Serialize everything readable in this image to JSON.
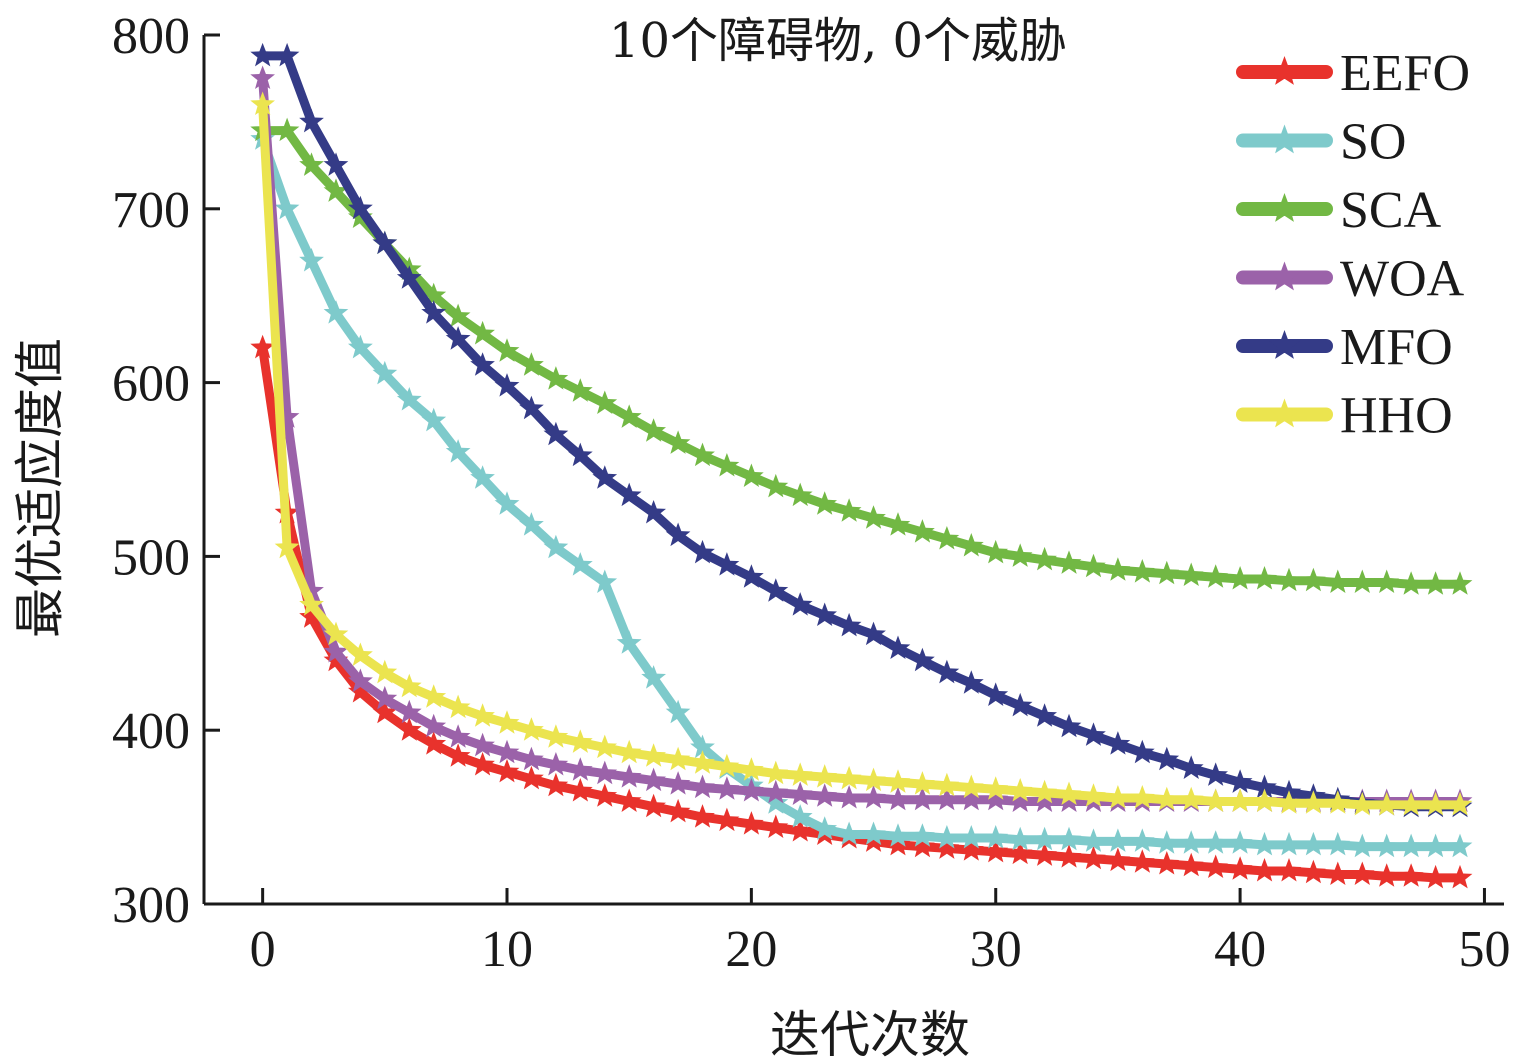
{
  "chart_data": {
    "type": "line",
    "title": "10个障碍物, 0个威胁",
    "xlabel": "迭代次数",
    "ylabel": "最优适应度值",
    "xlim": [
      -2.4,
      50.8
    ],
    "ylim": [
      300,
      800
    ],
    "xticks": [
      0,
      10,
      20,
      30,
      40,
      50
    ],
    "yticks": [
      300,
      400,
      500,
      600,
      700,
      800
    ],
    "grid": false,
    "legend_position": "top-right",
    "x": [
      0,
      1,
      2,
      3,
      4,
      5,
      6,
      7,
      8,
      9,
      10,
      11,
      12,
      13,
      14,
      15,
      16,
      17,
      18,
      19,
      20,
      21,
      22,
      23,
      24,
      25,
      26,
      27,
      28,
      29,
      30,
      31,
      32,
      33,
      34,
      35,
      36,
      37,
      38,
      39,
      40,
      41,
      42,
      43,
      44,
      45,
      46,
      47,
      48,
      49
    ],
    "series": [
      {
        "name": "EEFO",
        "color": "#e8322c",
        "values": [
          620,
          525,
          465,
          440,
          422,
          410,
          400,
          392,
          385,
          380,
          376,
          372,
          368,
          365,
          362,
          359,
          356,
          353,
          350,
          348,
          346,
          344,
          342,
          340,
          338,
          336,
          334,
          333,
          332,
          331,
          330,
          329,
          328,
          327,
          326,
          325,
          324,
          323,
          322,
          321,
          320,
          319,
          319,
          318,
          317,
          317,
          316,
          316,
          315,
          315
        ]
      },
      {
        "name": "SO",
        "color": "#7ecacb",
        "values": [
          740,
          700,
          670,
          640,
          620,
          605,
          590,
          578,
          560,
          545,
          530,
          518,
          505,
          495,
          485,
          450,
          430,
          410,
          390,
          378,
          368,
          358,
          350,
          343,
          340,
          340,
          339,
          339,
          338,
          338,
          338,
          337,
          337,
          337,
          336,
          336,
          336,
          335,
          335,
          335,
          335,
          334,
          334,
          334,
          334,
          333,
          333,
          333,
          333,
          333
        ]
      },
      {
        "name": "SCA",
        "color": "#72b844",
        "values": [
          745,
          745,
          725,
          710,
          695,
          680,
          665,
          650,
          638,
          628,
          618,
          610,
          602,
          595,
          588,
          580,
          572,
          565,
          558,
          552,
          546,
          540,
          535,
          530,
          526,
          522,
          518,
          514,
          510,
          506,
          502,
          500,
          498,
          496,
          494,
          492,
          491,
          490,
          489,
          488,
          487,
          487,
          486,
          486,
          485,
          485,
          485,
          484,
          484,
          484
        ]
      },
      {
        "name": "WOA",
        "color": "#9b62a9",
        "values": [
          775,
          580,
          480,
          445,
          428,
          418,
          410,
          402,
          396,
          391,
          387,
          383,
          380,
          377,
          375,
          373,
          371,
          369,
          367,
          366,
          365,
          364,
          363,
          362,
          361,
          361,
          360,
          360,
          360,
          360,
          360,
          359,
          359,
          359,
          359,
          359,
          359,
          359,
          359,
          359,
          359,
          359,
          359,
          359,
          359,
          359,
          359,
          359,
          359,
          359
        ]
      },
      {
        "name": "MFO",
        "color": "#343b87",
        "values": [
          788,
          788,
          750,
          725,
          700,
          680,
          660,
          640,
          625,
          610,
          598,
          585,
          570,
          558,
          545,
          535,
          525,
          512,
          502,
          495,
          488,
          480,
          472,
          466,
          460,
          455,
          447,
          440,
          433,
          427,
          420,
          414,
          408,
          402,
          397,
          392,
          387,
          383,
          378,
          374,
          370,
          367,
          364,
          362,
          360,
          358,
          357,
          356,
          356,
          356
        ]
      },
      {
        "name": "HHO",
        "color": "#ebe44f",
        "values": [
          760,
          505,
          472,
          455,
          443,
          433,
          425,
          419,
          413,
          408,
          404,
          400,
          396,
          393,
          390,
          387,
          385,
          383,
          381,
          379,
          377,
          375,
          374,
          373,
          372,
          371,
          370,
          369,
          368,
          367,
          366,
          365,
          364,
          363,
          362,
          361,
          361,
          360,
          360,
          359,
          359,
          359,
          358,
          358,
          358,
          357,
          357,
          357,
          357,
          357
        ]
      }
    ]
  }
}
